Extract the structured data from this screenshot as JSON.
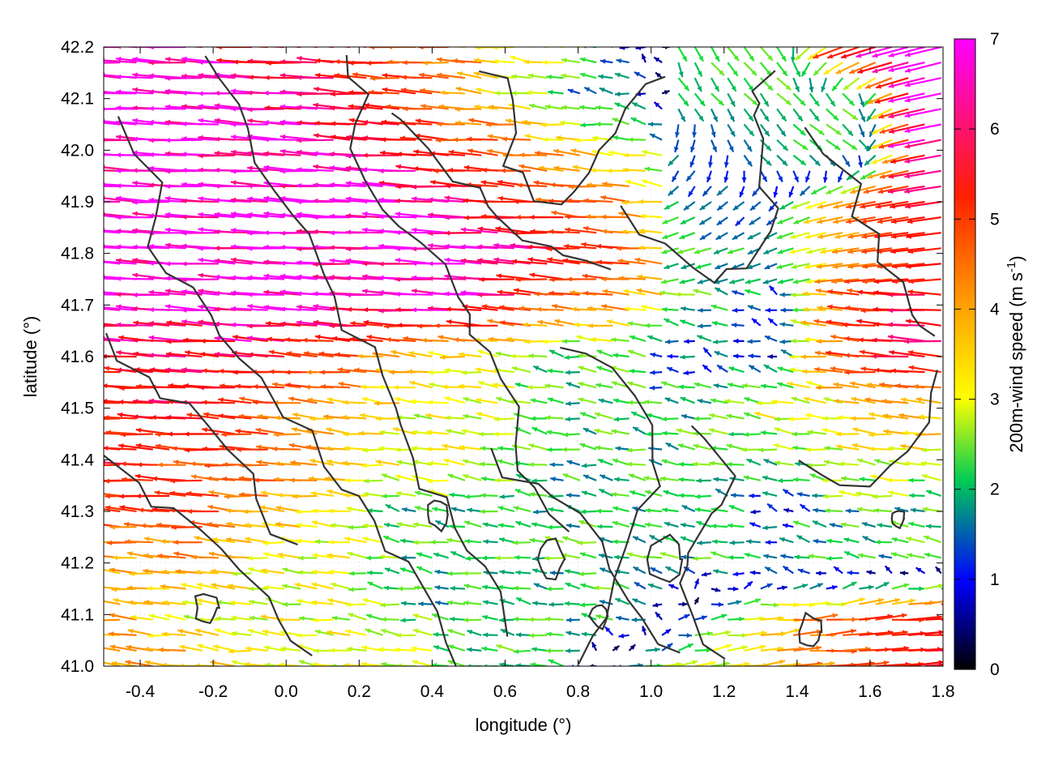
{
  "chart_data": {
    "type": "quiver",
    "title": "",
    "xlabel": "longitude (°)",
    "ylabel": "latitude (°)",
    "xlim": [
      -0.5,
      1.8
    ],
    "ylim": [
      41.0,
      42.2
    ],
    "xticks": [
      -0.4,
      -0.2,
      0.0,
      0.2,
      0.4,
      0.6,
      0.8,
      1.0,
      1.2,
      1.4,
      1.6,
      1.8
    ],
    "xtick_labels": [
      "-0.4",
      "-0.2",
      "0.0",
      "0.2",
      "0.4",
      "0.6",
      "0.8",
      "1.0",
      "1.2",
      "1.4",
      "1.6",
      "1.8"
    ],
    "yticks": [
      41.0,
      41.1,
      41.2,
      41.3,
      41.4,
      41.5,
      41.6,
      41.7,
      41.8,
      41.9,
      42.0,
      42.1,
      42.2
    ],
    "ytick_labels": [
      "41.0",
      "41.1",
      "41.2",
      "41.3",
      "41.4",
      "41.5",
      "41.6",
      "41.7",
      "41.8",
      "41.9",
      "42.0",
      "42.1",
      "42.2"
    ],
    "grid": true,
    "colorbar": {
      "label_main": "200m-wind speed (m s",
      "label_sup": "-1",
      "label_close": ")",
      "range": [
        0,
        7
      ],
      "ticks": [
        0,
        1,
        2,
        3,
        4,
        5,
        6,
        7
      ],
      "tick_labels": [
        "0",
        "1",
        "2",
        "3",
        "4",
        "5",
        "6",
        "7"
      ],
      "palette": [
        "#000000",
        "#0000ff",
        "#00ff00",
        "#ffff00",
        "#ffa500",
        "#ff0000",
        "#ff00ff"
      ]
    },
    "wind_field_sample": {
      "note_units": "m s-1",
      "u": [
        [
          -7,
          -7,
          -6,
          -6,
          -5,
          -4,
          -3,
          -1,
          1,
          2,
          -6,
          -7
        ],
        [
          -7,
          -7,
          -7,
          -6,
          -5,
          -4,
          -2,
          -1,
          1,
          2,
          3,
          -7
        ],
        [
          -7,
          -7,
          -7,
          -7,
          -6,
          -5,
          -4,
          -3,
          -1,
          2,
          3,
          -6
        ],
        [
          -7,
          -7,
          -7,
          -7,
          -7,
          -6,
          -5,
          -4,
          -2,
          -1,
          -4,
          -6
        ],
        [
          -7,
          -7,
          -7,
          -7,
          -7,
          -7,
          -6,
          -5,
          -3,
          -2,
          -4,
          -5
        ],
        [
          -7,
          -7,
          -7,
          -7,
          -7,
          -7,
          -5,
          -4,
          -2,
          -1,
          -5,
          -6
        ],
        [
          -6,
          -6,
          -6,
          -5,
          -4,
          -3,
          -2,
          -2,
          -1,
          -1,
          -5,
          -6
        ],
        [
          -5,
          -6,
          -5,
          -4,
          -3,
          -3,
          -2,
          -2,
          -2,
          -3,
          -3,
          -4
        ],
        [
          -6,
          -5,
          -5,
          -4,
          -3,
          -3,
          -2,
          -2,
          -2,
          -2,
          -3,
          -3
        ],
        [
          -5,
          -5,
          -4,
          -3,
          -2,
          -2,
          -2,
          -2,
          -2,
          -1,
          -2,
          -2
        ],
        [
          -4,
          -4,
          -3,
          -3,
          -2,
          -2,
          -2,
          -2,
          -2,
          -2,
          -2,
          -2
        ],
        [
          -4,
          -3,
          -3,
          -3,
          -2,
          -2,
          -2,
          -2,
          2,
          4,
          5,
          6
        ],
        [
          -4,
          -4,
          -3,
          -3,
          -3,
          -2,
          -2,
          2,
          3,
          4,
          5,
          6
        ]
      ],
      "v_note": "rows from 42.2 (top) to 41.0 (bottom), columns from -0.45 to 1.75 step 0.2"
    }
  }
}
